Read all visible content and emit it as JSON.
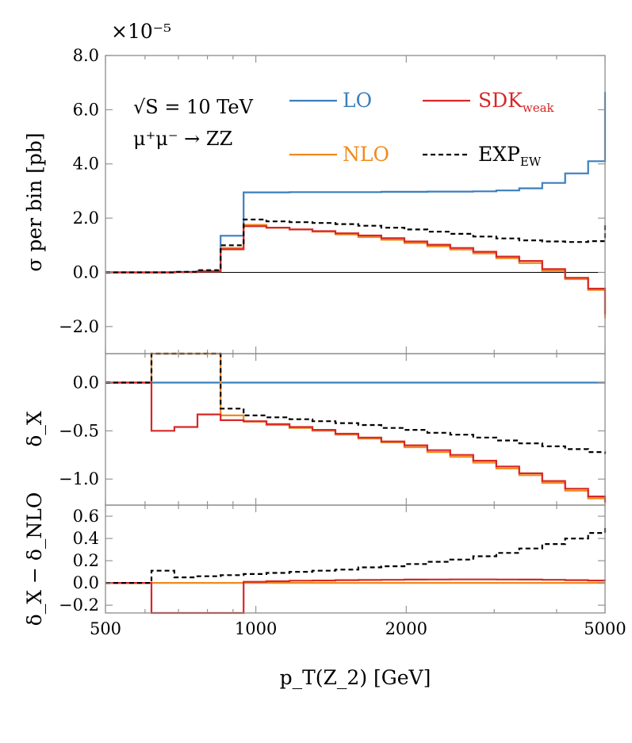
{
  "chart_data": [
    {
      "type": "line",
      "panel": "top",
      "scale_label": "×10⁻⁵",
      "ylabel": "σ per bin [pb]",
      "ylim": [
        -3.0,
        8.0
      ],
      "yticks": [
        8.0,
        6.0,
        4.0,
        2.0,
        0.0,
        -2.0
      ],
      "ytick_labels": [
        "8.0",
        "6.0",
        "4.0",
        "2.0",
        "0.0",
        "−2.0"
      ],
      "annotations": [
        "√S = 10 TeV",
        "μ⁺μ⁻ → ZZ"
      ],
      "legend": [
        {
          "label": "LO",
          "color": "#3a7fbd",
          "dash": false
        },
        {
          "label": "NLO",
          "color": "#f08a1c",
          "dash": false
        },
        {
          "label": "SDK",
          "sub": "weak",
          "color": "#d62728",
          "dash": false
        },
        {
          "label": "EXP",
          "sub": "EW",
          "color": "#000000",
          "dash": true
        }
      ],
      "edges": [
        500,
        556,
        618,
        687,
        764,
        850,
        945,
        1050,
        1168,
        1298,
        1443,
        1604,
        1783,
        1983,
        2204,
        2450,
        2724,
        3029,
        3367,
        3743,
        4161,
        4626,
        5000
      ],
      "series": [
        {
          "name": "LO",
          "color": "#3a7fbd",
          "dash": false,
          "values": [
            0,
            0,
            0,
            0.02,
            0.05,
            1.35,
            2.95,
            2.95,
            2.96,
            2.96,
            2.96,
            2.96,
            2.97,
            2.97,
            2.98,
            2.98,
            2.99,
            3.02,
            3.1,
            3.3,
            3.65,
            4.1,
            6.65
          ]
        },
        {
          "name": "NLO",
          "color": "#f08a1c",
          "dash": false,
          "values": [
            0,
            0,
            0,
            0.01,
            0.03,
            0.9,
            1.75,
            1.65,
            1.58,
            1.5,
            1.4,
            1.3,
            1.2,
            1.08,
            0.96,
            0.84,
            0.7,
            0.52,
            0.34,
            0.05,
            -0.25,
            -0.65,
            -1.7
          ]
        },
        {
          "name": "SDK_weak",
          "color": "#d62728",
          "dash": false,
          "values": [
            0,
            0,
            0,
            0.01,
            0.03,
            0.85,
            1.7,
            1.65,
            1.58,
            1.52,
            1.44,
            1.36,
            1.26,
            1.14,
            1.02,
            0.9,
            0.76,
            0.58,
            0.42,
            0.12,
            -0.2,
            -0.6,
            -1.55
          ]
        },
        {
          "name": "EXP_EW",
          "color": "#000000",
          "dash": true,
          "values": [
            0,
            0,
            0,
            0.02,
            0.08,
            1.0,
            1.95,
            1.88,
            1.85,
            1.82,
            1.78,
            1.72,
            1.65,
            1.58,
            1.5,
            1.42,
            1.32,
            1.25,
            1.18,
            1.14,
            1.12,
            1.15,
            1.82
          ]
        }
      ]
    },
    {
      "type": "line",
      "panel": "middle",
      "ylabel": "δ_X",
      "ylim": [
        -1.27,
        0.3
      ],
      "yticks": [
        0.0,
        -0.5,
        -1.0
      ],
      "ytick_labels": [
        "0.0",
        "−0.5",
        "−1.0"
      ],
      "edges": [
        500,
        556,
        618,
        687,
        764,
        850,
        945,
        1050,
        1168,
        1298,
        1443,
        1604,
        1783,
        1983,
        2204,
        2450,
        2724,
        3029,
        3367,
        3743,
        4161,
        4626,
        5000
      ],
      "series": [
        {
          "name": "LO",
          "color": "#3a7fbd",
          "dash": false,
          "values": [
            0,
            0,
            0,
            0,
            0,
            0,
            0,
            0,
            0,
            0,
            0,
            0,
            0,
            0,
            0,
            0,
            0,
            0,
            0,
            0,
            0,
            0,
            0
          ]
        },
        {
          "name": "NLO",
          "color": "#f08a1c",
          "dash": false,
          "values": [
            0,
            0,
            0.3,
            0.3,
            0.3,
            -0.34,
            -0.405,
            -0.44,
            -0.47,
            -0.5,
            -0.54,
            -0.58,
            -0.62,
            -0.67,
            -0.72,
            -0.77,
            -0.83,
            -0.89,
            -0.96,
            -1.04,
            -1.12,
            -1.2,
            -1.25
          ]
        },
        {
          "name": "SDK_weak",
          "color": "#d62728",
          "dash": false,
          "values": [
            0,
            0,
            -0.5,
            -0.46,
            -0.33,
            -0.39,
            -0.4,
            -0.43,
            -0.46,
            -0.49,
            -0.53,
            -0.57,
            -0.61,
            -0.65,
            -0.7,
            -0.75,
            -0.81,
            -0.87,
            -0.94,
            -1.02,
            -1.1,
            -1.18,
            -1.24
          ]
        },
        {
          "name": "EXP_EW",
          "color": "#000000",
          "dash": true,
          "values": [
            0,
            0,
            0.3,
            0.3,
            0.3,
            -0.27,
            -0.34,
            -0.36,
            -0.38,
            -0.4,
            -0.42,
            -0.44,
            -0.47,
            -0.49,
            -0.52,
            -0.54,
            -0.57,
            -0.6,
            -0.63,
            -0.66,
            -0.69,
            -0.72,
            -0.74
          ]
        }
      ]
    },
    {
      "type": "line",
      "panel": "bottom",
      "ylabel": "δ_X − δ_NLO",
      "ylim": [
        -0.27,
        0.7
      ],
      "yticks": [
        0.6,
        0.4,
        0.2,
        0.0,
        -0.2
      ],
      "ytick_labels": [
        "0.6",
        "0.4",
        "0.2",
        "0.0",
        "−0.2"
      ],
      "xlabel": "p_T(Z_2) [GeV]",
      "xlim": [
        500,
        5000
      ],
      "xscale": "log",
      "xticks": [
        500,
        1000,
        2000,
        5000
      ],
      "xtick_labels": [
        "500",
        "1000",
        "2000",
        "5000"
      ],
      "edges": [
        500,
        556,
        618,
        687,
        764,
        850,
        945,
        1050,
        1168,
        1298,
        1443,
        1604,
        1783,
        1983,
        2204,
        2450,
        2724,
        3029,
        3367,
        3743,
        4161,
        4626,
        5000
      ],
      "series": [
        {
          "name": "NLO",
          "color": "#f08a1c",
          "dash": false,
          "values": [
            0,
            0,
            0,
            0,
            0,
            0,
            0,
            0,
            0,
            0,
            0,
            0,
            0,
            0,
            0,
            0,
            0,
            0,
            0,
            0,
            0,
            0,
            0
          ]
        },
        {
          "name": "SDK_weak",
          "color": "#d62728",
          "dash": false,
          "values": [
            0,
            0,
            -0.27,
            -0.27,
            -0.27,
            -0.27,
            0.01,
            0.015,
            0.02,
            0.022,
            0.025,
            0.027,
            0.028,
            0.03,
            0.031,
            0.032,
            0.032,
            0.031,
            0.03,
            0.028,
            0.025,
            0.022,
            0.02
          ]
        },
        {
          "name": "EXP_EW",
          "color": "#000000",
          "dash": true,
          "values": [
            0,
            0,
            0.11,
            0.05,
            0.06,
            0.07,
            0.08,
            0.09,
            0.1,
            0.11,
            0.12,
            0.14,
            0.15,
            0.17,
            0.19,
            0.21,
            0.24,
            0.27,
            0.31,
            0.35,
            0.4,
            0.45,
            0.52
          ]
        }
      ]
    }
  ]
}
